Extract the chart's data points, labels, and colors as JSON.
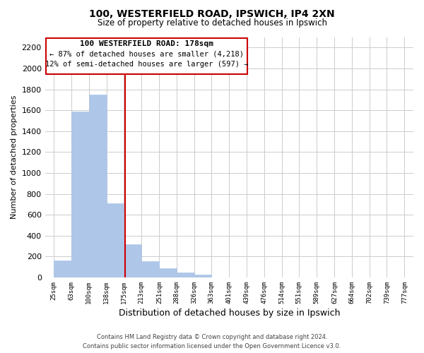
{
  "title": "100, WESTERFIELD ROAD, IPSWICH, IP4 2XN",
  "subtitle": "Size of property relative to detached houses in Ipswich",
  "xlabel": "Distribution of detached houses by size in Ipswich",
  "ylabel": "Number of detached properties",
  "bar_edges": [
    25,
    63,
    100,
    138,
    175,
    213,
    251,
    288,
    326,
    363,
    401,
    439,
    476,
    514,
    551,
    589,
    627,
    664,
    702,
    739,
    777
  ],
  "bar_heights": [
    160,
    1590,
    1750,
    710,
    315,
    155,
    85,
    50,
    25,
    0,
    0,
    0,
    0,
    0,
    0,
    0,
    0,
    0,
    0,
    0
  ],
  "bar_color": "#aec6e8",
  "bar_edge_color": "#aec6e8",
  "reference_line_x": 178,
  "reference_line_color": "#cc0000",
  "annotation_line1": "100 WESTERFIELD ROAD: 178sqm",
  "annotation_line2": "← 87% of detached houses are smaller (4,218)",
  "annotation_line3": "12% of semi-detached houses are larger (597) →",
  "annotation_box_color": "#ffffff",
  "annotation_box_edge": "#cc0000",
  "ylim": [
    0,
    2300
  ],
  "yticks": [
    0,
    200,
    400,
    600,
    800,
    1000,
    1200,
    1400,
    1600,
    1800,
    2000,
    2200
  ],
  "tick_labels": [
    "25sqm",
    "63sqm",
    "100sqm",
    "138sqm",
    "175sqm",
    "213sqm",
    "251sqm",
    "288sqm",
    "326sqm",
    "363sqm",
    "401sqm",
    "439sqm",
    "476sqm",
    "514sqm",
    "551sqm",
    "589sqm",
    "627sqm",
    "664sqm",
    "702sqm",
    "739sqm",
    "777sqm"
  ],
  "footer_line1": "Contains HM Land Registry data © Crown copyright and database right 2024.",
  "footer_line2": "Contains public sector information licensed under the Open Government Licence v3.0.",
  "bg_color": "#ffffff",
  "grid_color": "#cccccc"
}
